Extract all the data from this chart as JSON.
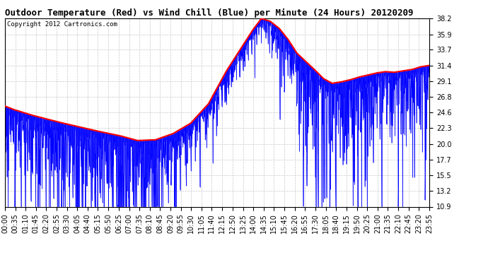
{
  "title": "Outdoor Temperature (Red) vs Wind Chill (Blue) per Minute (24 Hours) 20120209",
  "copyright": "Copyright 2012 Cartronics.com",
  "y_ticks": [
    10.9,
    13.2,
    15.5,
    17.7,
    20.0,
    22.3,
    24.6,
    26.8,
    29.1,
    31.4,
    33.7,
    35.9,
    38.2
  ],
  "ylim": [
    10.9,
    38.2
  ],
  "x_tick_labels": [
    "00:00",
    "00:35",
    "01:10",
    "01:45",
    "02:20",
    "02:55",
    "03:30",
    "04:05",
    "04:40",
    "05:15",
    "05:50",
    "06:25",
    "07:00",
    "07:35",
    "08:10",
    "08:45",
    "09:20",
    "09:55",
    "10:30",
    "11:05",
    "11:40",
    "12:15",
    "12:50",
    "13:25",
    "14:00",
    "14:35",
    "15:10",
    "15:45",
    "16:20",
    "16:55",
    "17:30",
    "18:05",
    "18:40",
    "19:15",
    "19:50",
    "20:25",
    "21:00",
    "21:35",
    "22:10",
    "22:45",
    "23:20",
    "23:55"
  ],
  "background_color": "#ffffff",
  "plot_bg_color": "#ffffff",
  "grid_color": "#c8c8c8",
  "red_color": "#ff0000",
  "blue_color": "#0000ff",
  "title_color": "#000000",
  "title_fontsize": 9,
  "copyright_fontsize": 6.5,
  "tick_label_fontsize": 7,
  "red_linewidth": 1.5,
  "blue_linewidth": 0.6
}
